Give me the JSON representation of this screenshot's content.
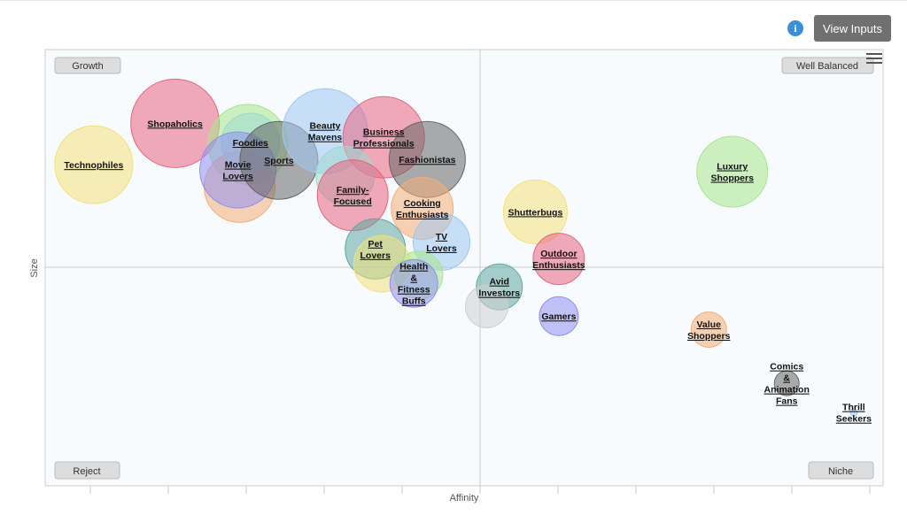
{
  "header": {
    "info_icon": "info-icon",
    "view_inputs_label": "View Inputs",
    "menu_icon": "hamburger-menu-icon"
  },
  "chart_data": {
    "type": "bubble",
    "xlabel": "Affinity",
    "ylabel": "Size",
    "xlim": [
      0,
      100
    ],
    "ylim": [
      0,
      100
    ],
    "quadrant_labels": {
      "top_left": "Growth",
      "top_right": "Well Balanced",
      "bottom_left": "Reject",
      "bottom_right": "Niche"
    },
    "bubble_colors": {
      "yellow": "#f2e17a",
      "pink": "#e7657f",
      "green": "#a8e68e",
      "blue": "#9ec6f2",
      "purple": "#8f8ff0",
      "orange": "#f4ad77",
      "dark": "#666666",
      "teal": "#5fa6a0",
      "gray": "#cfcfcf",
      "mint": "#9ed9cf"
    },
    "series": [
      {
        "label": "Technophiles",
        "x": 5.8,
        "y": 73.6,
        "size": 44,
        "color": "#f2e17a"
      },
      {
        "label": "Shopaholics",
        "x": 15.5,
        "y": 83.1,
        "size": 50,
        "color": "#e7657f"
      },
      {
        "label": "",
        "x": 24.2,
        "y": 78.3,
        "size": 45,
        "color": "#a8e68e"
      },
      {
        "label": "",
        "x": 23.2,
        "y": 68.5,
        "size": 40,
        "color": "#f4ad77"
      },
      {
        "label": "Foodies",
        "x": 24.5,
        "y": 78.7,
        "size": 33,
        "color": "#9ed9cf"
      },
      {
        "label": "Movie Lovers",
        "x": 23.0,
        "y": 72.4,
        "size": 43,
        "color": "#8f8ff0"
      },
      {
        "label": "Sports",
        "x": 27.9,
        "y": 74.6,
        "size": 44,
        "color": "#666666"
      },
      {
        "label": "Beauty Mavens",
        "x": 33.4,
        "y": 81.3,
        "size": 48,
        "color": "#9ec6f2"
      },
      {
        "label": "Business Professionals",
        "x": 40.4,
        "y": 79.9,
        "size": 46,
        "color": "#e7657f"
      },
      {
        "label": "Fashionistas",
        "x": 45.6,
        "y": 74.8,
        "size": 43,
        "color": "#666666"
      },
      {
        "label": "",
        "x": 35.8,
        "y": 71.1,
        "size": 33,
        "color": "#9ed9cf"
      },
      {
        "label": "Family-Focused",
        "x": 36.7,
        "y": 66.6,
        "size": 40,
        "color": "#e7657f"
      },
      {
        "label": "Cooking Enthusiasts",
        "x": 45.0,
        "y": 63.6,
        "size": 35,
        "color": "#f4ad77"
      },
      {
        "label": "Pet Lovers",
        "x": 39.4,
        "y": 54.3,
        "size": 34,
        "color": "#5fa6a0"
      },
      {
        "label": "",
        "x": 40.2,
        "y": 50.9,
        "size": 32,
        "color": "#f2e17a"
      },
      {
        "label": "TV Lovers",
        "x": 47.3,
        "y": 55.9,
        "size": 32,
        "color": "#9ec6f2"
      },
      {
        "label": "",
        "x": 44.6,
        "y": 48.3,
        "size": 27,
        "color": "#a8e68e"
      },
      {
        "label": "Health & Fitness Buffs",
        "x": 44.0,
        "y": 46.4,
        "size": 27,
        "color": "#8f8ff0"
      },
      {
        "label": "Shutterbugs",
        "x": 58.5,
        "y": 62.8,
        "size": 36,
        "color": "#f2e17a"
      },
      {
        "label": "Outdoor Enthusiasts",
        "x": 61.3,
        "y": 52.0,
        "size": 29,
        "color": "#e7657f"
      },
      {
        "label": "Avid Investors",
        "x": 54.2,
        "y": 45.6,
        "size": 26,
        "color": "#5fa6a0"
      },
      {
        "label": "",
        "x": 52.7,
        "y": 41.1,
        "size": 24,
        "color": "#cfcfcf"
      },
      {
        "label": "Gamers",
        "x": 61.3,
        "y": 38.9,
        "size": 22,
        "color": "#8f8ff0"
      },
      {
        "label": "Luxury Shoppers",
        "x": 82.0,
        "y": 72.0,
        "size": 40,
        "color": "#a8e68e"
      },
      {
        "label": "Value Shoppers",
        "x": 79.2,
        "y": 35.8,
        "size": 20,
        "color": "#f4ad77"
      },
      {
        "label": "Comics & Animation Fans",
        "x": 88.5,
        "y": 23.5,
        "size": 14,
        "color": "#666666"
      },
      {
        "label": "Thrill Seekers",
        "x": 96.5,
        "y": 16.8,
        "size": 4,
        "color": "#9ec6f2"
      }
    ]
  }
}
